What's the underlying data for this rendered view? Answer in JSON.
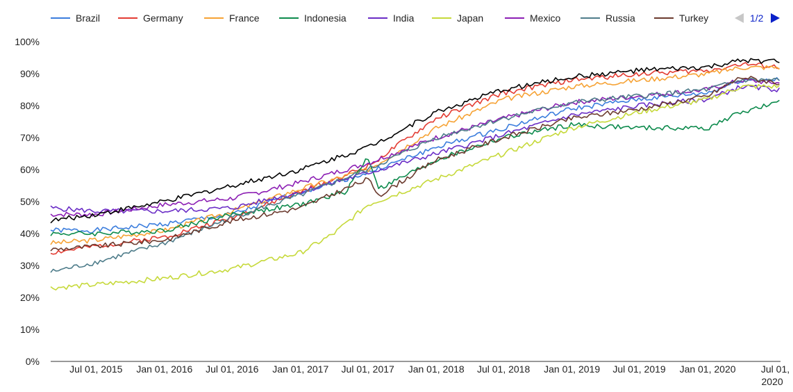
{
  "chart_data": {
    "type": "line",
    "title": "",
    "xlabel": "",
    "ylabel": "",
    "ylim": [
      0,
      100
    ],
    "y_ticks": [
      "0%",
      "10%",
      "20%",
      "30%",
      "40%",
      "50%",
      "60%",
      "70%",
      "80%",
      "90%",
      "100%"
    ],
    "x_range": [
      "2015-03-01",
      "2020-07-15"
    ],
    "x_ticks": [
      {
        "date": "2015-07-01",
        "label": "Jul 01, 2015"
      },
      {
        "date": "2016-01-01",
        "label": "Jan 01, 2016"
      },
      {
        "date": "2016-07-01",
        "label": "Jul 01, 2016"
      },
      {
        "date": "2017-01-01",
        "label": "Jan 01, 2017"
      },
      {
        "date": "2017-07-01",
        "label": "Jul 01, 2017"
      },
      {
        "date": "2018-01-01",
        "label": "Jan 01, 2018"
      },
      {
        "date": "2018-07-01",
        "label": "Jul 01, 2018"
      },
      {
        "date": "2019-01-01",
        "label": "Jan 01, 2019"
      },
      {
        "date": "2019-07-01",
        "label": "Jul 01, 2019"
      },
      {
        "date": "2020-01-01",
        "label": "Jan 01, 2020"
      },
      {
        "date": "2020-07-01",
        "label": "Jul 01,",
        "label2": "2020"
      }
    ],
    "grid": {
      "horizontal": false,
      "vertical": false
    },
    "legend_position": "top",
    "legend_pager": {
      "text": "1/2"
    },
    "series": [
      {
        "name": "Brazil",
        "color": "#3b7ddd",
        "points": [
          [
            "2015-03-01",
            41
          ],
          [
            "2015-07-01",
            41
          ],
          [
            "2016-01-01",
            43
          ],
          [
            "2016-07-01",
            46
          ],
          [
            "2017-01-01",
            53
          ],
          [
            "2017-07-01",
            59
          ],
          [
            "2018-01-01",
            67
          ],
          [
            "2018-07-01",
            73
          ],
          [
            "2019-01-01",
            79
          ],
          [
            "2019-07-01",
            82
          ],
          [
            "2020-01-01",
            84
          ],
          [
            "2020-04-01",
            88
          ],
          [
            "2020-07-15",
            88
          ]
        ]
      },
      {
        "name": "Germany",
        "color": "#e33b32",
        "points": [
          [
            "2015-03-01",
            34
          ],
          [
            "2015-07-01",
            36
          ],
          [
            "2016-01-01",
            39
          ],
          [
            "2016-07-01",
            45
          ],
          [
            "2017-01-01",
            53
          ],
          [
            "2017-07-01",
            61
          ],
          [
            "2018-01-01",
            76
          ],
          [
            "2018-07-01",
            84
          ],
          [
            "2019-01-01",
            88
          ],
          [
            "2019-07-01",
            90
          ],
          [
            "2020-01-01",
            91
          ],
          [
            "2020-04-01",
            93
          ],
          [
            "2020-07-15",
            92
          ]
        ]
      },
      {
        "name": "France",
        "color": "#f6a234",
        "points": [
          [
            "2015-03-01",
            37
          ],
          [
            "2015-07-01",
            38
          ],
          [
            "2016-01-01",
            41
          ],
          [
            "2016-07-01",
            47
          ],
          [
            "2017-01-01",
            54
          ],
          [
            "2017-07-01",
            60
          ],
          [
            "2018-01-01",
            73
          ],
          [
            "2018-07-01",
            82
          ],
          [
            "2019-01-01",
            86
          ],
          [
            "2019-07-01",
            88
          ],
          [
            "2020-01-01",
            90
          ],
          [
            "2020-04-01",
            92
          ],
          [
            "2020-07-15",
            92
          ]
        ]
      },
      {
        "name": "Indonesia",
        "color": "#0c8a4c",
        "points": [
          [
            "2015-03-01",
            40
          ],
          [
            "2015-07-01",
            40
          ],
          [
            "2016-01-01",
            41
          ],
          [
            "2016-07-01",
            46
          ],
          [
            "2017-01-01",
            49
          ],
          [
            "2017-05-01",
            53
          ],
          [
            "2017-07-01",
            64
          ],
          [
            "2017-08-01",
            54
          ],
          [
            "2018-01-01",
            63
          ],
          [
            "2018-07-01",
            70
          ],
          [
            "2019-01-01",
            74
          ],
          [
            "2019-07-01",
            73
          ],
          [
            "2020-01-01",
            73
          ],
          [
            "2020-04-01",
            78
          ],
          [
            "2020-07-15",
            81
          ]
        ]
      },
      {
        "name": "India",
        "color": "#6a2cc6",
        "points": [
          [
            "2015-03-01",
            48
          ],
          [
            "2015-07-01",
            47
          ],
          [
            "2016-01-01",
            47
          ],
          [
            "2016-07-01",
            48
          ],
          [
            "2017-01-01",
            53
          ],
          [
            "2017-07-01",
            59
          ],
          [
            "2018-01-01",
            65
          ],
          [
            "2018-07-01",
            71
          ],
          [
            "2019-01-01",
            77
          ],
          [
            "2019-07-01",
            80
          ],
          [
            "2020-01-01",
            82
          ],
          [
            "2020-04-01",
            86
          ],
          [
            "2020-07-15",
            85
          ]
        ]
      },
      {
        "name": "Japan",
        "color": "#c6d93a",
        "points": [
          [
            "2015-03-01",
            23
          ],
          [
            "2015-07-01",
            24
          ],
          [
            "2016-01-01",
            26
          ],
          [
            "2016-07-01",
            29
          ],
          [
            "2017-01-01",
            34
          ],
          [
            "2017-04-01",
            40
          ],
          [
            "2017-07-01",
            49
          ],
          [
            "2018-01-01",
            57
          ],
          [
            "2018-07-01",
            65
          ],
          [
            "2019-01-01",
            73
          ],
          [
            "2019-07-01",
            78
          ],
          [
            "2020-01-01",
            82
          ],
          [
            "2020-04-01",
            86
          ],
          [
            "2020-07-15",
            86
          ]
        ]
      },
      {
        "name": "Mexico",
        "color": "#8c1fb4",
        "points": [
          [
            "2015-03-01",
            46
          ],
          [
            "2015-07-01",
            46
          ],
          [
            "2016-01-01",
            49
          ],
          [
            "2016-07-01",
            51
          ],
          [
            "2017-01-01",
            56
          ],
          [
            "2017-07-01",
            62
          ],
          [
            "2018-01-01",
            70
          ],
          [
            "2018-07-01",
            76
          ],
          [
            "2019-01-01",
            81
          ],
          [
            "2019-07-01",
            83
          ],
          [
            "2020-01-01",
            85
          ],
          [
            "2020-04-01",
            88
          ],
          [
            "2020-07-15",
            87
          ]
        ]
      },
      {
        "name": "Russia",
        "color": "#4e7c8a",
        "points": [
          [
            "2015-03-01",
            28
          ],
          [
            "2015-07-01",
            31
          ],
          [
            "2016-01-01",
            37
          ],
          [
            "2016-07-01",
            45
          ],
          [
            "2017-01-01",
            52
          ],
          [
            "2017-07-01",
            60
          ],
          [
            "2018-01-01",
            70
          ],
          [
            "2018-07-01",
            76
          ],
          [
            "2019-01-01",
            81
          ],
          [
            "2019-07-01",
            83
          ],
          [
            "2020-01-01",
            85
          ],
          [
            "2020-04-01",
            88
          ],
          [
            "2020-07-15",
            88
          ]
        ]
      },
      {
        "name": "Turkey",
        "color": "#6b3a2e",
        "points": [
          [
            "2015-03-01",
            35
          ],
          [
            "2015-07-01",
            36
          ],
          [
            "2016-01-01",
            38
          ],
          [
            "2016-07-01",
            44
          ],
          [
            "2017-01-01",
            48
          ],
          [
            "2017-07-01",
            57
          ],
          [
            "2017-08-01",
            52
          ],
          [
            "2018-01-01",
            63
          ],
          [
            "2018-07-01",
            70
          ],
          [
            "2019-01-01",
            76
          ],
          [
            "2019-07-01",
            79
          ],
          [
            "2020-01-01",
            83
          ],
          [
            "2020-04-01",
            89
          ],
          [
            "2020-07-15",
            87
          ]
        ]
      },
      {
        "name": "",
        "color": "#000000",
        "points": [
          [
            "2015-03-01",
            44
          ],
          [
            "2015-07-01",
            46
          ],
          [
            "2016-01-01",
            50
          ],
          [
            "2016-07-01",
            55
          ],
          [
            "2017-01-01",
            60
          ],
          [
            "2017-07-01",
            67
          ],
          [
            "2018-01-01",
            78
          ],
          [
            "2018-07-01",
            85
          ],
          [
            "2019-01-01",
            89
          ],
          [
            "2019-07-01",
            91
          ],
          [
            "2020-01-01",
            92
          ],
          [
            "2020-04-01",
            94
          ],
          [
            "2020-07-15",
            94
          ]
        ]
      }
    ]
  }
}
